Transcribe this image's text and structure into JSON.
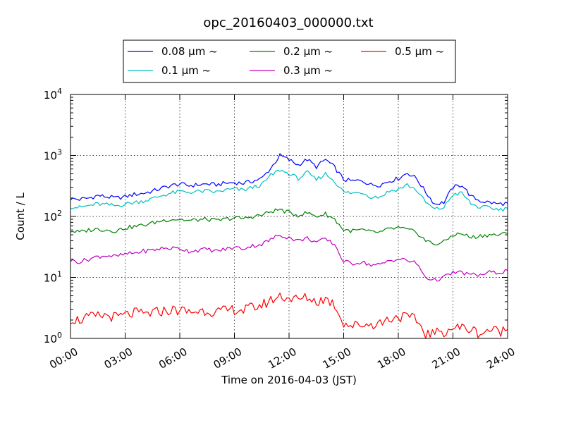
{
  "chart_data": {
    "type": "line",
    "title": "opc_20160403_000000.txt",
    "xlabel": "Time on 2016-04-03 (JST)",
    "ylabel": "Count / L",
    "x_unit": "hours",
    "xlim": [
      0,
      24
    ],
    "ylim": [
      1,
      10000
    ],
    "yscale": "log",
    "grid": true,
    "legend_position": "top",
    "x_tick_labels": [
      "00:00",
      "03:00",
      "06:00",
      "09:00",
      "12:00",
      "15:00",
      "18:00",
      "21:00",
      "24:00"
    ],
    "x_ticks": [
      0,
      3,
      6,
      9,
      12,
      15,
      18,
      21,
      24
    ],
    "y_ticks": [
      {
        "value": 1,
        "base": "10",
        "exp": "0"
      },
      {
        "value": 10,
        "base": "10",
        "exp": "1"
      },
      {
        "value": 100,
        "base": "10",
        "exp": "2"
      },
      {
        "value": 1000,
        "base": "10",
        "exp": "3"
      },
      {
        "value": 10000,
        "base": "10",
        "exp": "4"
      }
    ],
    "x": [
      0,
      0.5,
      1,
      1.5,
      2,
      2.5,
      3,
      3.5,
      4,
      4.5,
      5,
      5.5,
      6,
      6.5,
      7,
      7.5,
      8,
      8.5,
      9,
      9.5,
      10,
      10.5,
      11,
      11.5,
      12,
      12.5,
      13,
      13.5,
      14,
      14.5,
      15,
      15.5,
      16,
      16.5,
      17,
      17.5,
      18,
      18.5,
      19,
      19.5,
      20,
      20.5,
      21,
      21.5,
      22,
      22.5,
      23,
      23.5,
      24
    ],
    "series": [
      {
        "name": "0.08 μm ~",
        "color": "#0000ff",
        "values": [
          195,
          190,
          200,
          220,
          210,
          200,
          210,
          230,
          240,
          260,
          290,
          320,
          340,
          320,
          330,
          340,
          330,
          350,
          360,
          350,
          380,
          420,
          620,
          1000,
          850,
          700,
          860,
          650,
          860,
          640,
          400,
          380,
          390,
          330,
          330,
          380,
          420,
          520,
          420,
          250,
          160,
          170,
          300,
          330,
          210,
          180,
          170,
          160,
          165
        ]
      },
      {
        "name": "0.1 μm ~",
        "color": "#00bfbf",
        "values": [
          145,
          140,
          150,
          160,
          155,
          150,
          160,
          170,
          180,
          195,
          220,
          240,
          255,
          250,
          255,
          260,
          250,
          270,
          280,
          270,
          300,
          330,
          470,
          580,
          500,
          420,
          520,
          400,
          500,
          380,
          250,
          240,
          250,
          210,
          210,
          260,
          280,
          330,
          270,
          170,
          130,
          140,
          230,
          240,
          160,
          140,
          140,
          130,
          135
        ]
      },
      {
        "name": "0.2 μm ~",
        "color": "#008000",
        "values": [
          58,
          55,
          60,
          62,
          60,
          58,
          65,
          68,
          72,
          78,
          85,
          90,
          90,
          85,
          88,
          90,
          85,
          90,
          95,
          92,
          100,
          105,
          120,
          130,
          115,
          105,
          115,
          100,
          110,
          90,
          60,
          58,
          60,
          55,
          55,
          62,
          65,
          60,
          55,
          40,
          35,
          38,
          50,
          52,
          45,
          48,
          50,
          50,
          52
        ]
      },
      {
        "name": "0.3 μm ~",
        "color": "#bf00bf",
        "values": [
          19,
          18,
          20,
          22,
          23,
          22,
          24,
          25,
          27,
          28,
          30,
          30,
          30,
          27,
          28,
          29,
          27,
          29,
          31,
          30,
          33,
          35,
          42,
          50,
          45,
          40,
          44,
          38,
          42,
          35,
          18,
          17,
          18,
          16,
          16,
          19,
          20,
          19,
          17,
          10,
          9,
          10,
          12,
          12,
          11,
          11,
          12,
          12,
          13
        ]
      },
      {
        "name": "0.5 μm ~",
        "color": "#ff0000",
        "values": [
          2.1,
          2.0,
          2.2,
          2.3,
          2.4,
          2.2,
          2.4,
          2.6,
          2.5,
          2.6,
          2.8,
          2.9,
          2.9,
          2.7,
          2.8,
          2.9,
          2.7,
          2.8,
          3.0,
          2.9,
          3.2,
          3.5,
          4.2,
          5.0,
          4.6,
          4.3,
          4.7,
          4.0,
          4.5,
          3.6,
          1.8,
          1.6,
          1.7,
          1.7,
          1.8,
          2.1,
          2.3,
          2.2,
          2.0,
          1.2,
          1.2,
          1.3,
          1.5,
          1.5,
          1.4,
          1.2,
          1.4,
          1.3,
          1.4
        ]
      }
    ]
  }
}
